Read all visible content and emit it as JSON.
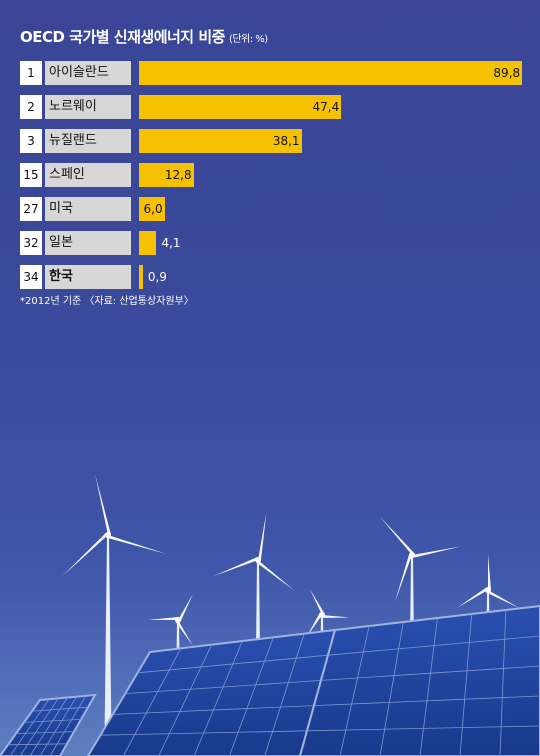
{
  "chart_data": {
    "type": "bar",
    "orientation": "horizontal",
    "title": "OECD 국가별 신재생에너지 비중",
    "unit": "(단위: %)",
    "ranks": [
      "1",
      "2",
      "3",
      "15",
      "27",
      "32",
      "34"
    ],
    "categories": [
      "아이슬란드",
      "노르웨이",
      "뉴질랜드",
      "스페인",
      "미국",
      "일본",
      "한국"
    ],
    "values": [
      89.8,
      47.4,
      38.1,
      12.8,
      6.0,
      4.1,
      0.9
    ],
    "value_labels": [
      "89,8",
      "47,4",
      "38,1",
      "12,8",
      "6,0",
      "4,1",
      "0,9"
    ],
    "xlim": [
      0,
      90
    ],
    "grid": false,
    "bar_color": "#f6c200"
  },
  "footnote": "*2012년 기준 〈자료: 산업통상자원부〉",
  "colors": {
    "background": "#3a4597",
    "rank_box": "#ffffff",
    "country_box": "#d7d7d7"
  }
}
